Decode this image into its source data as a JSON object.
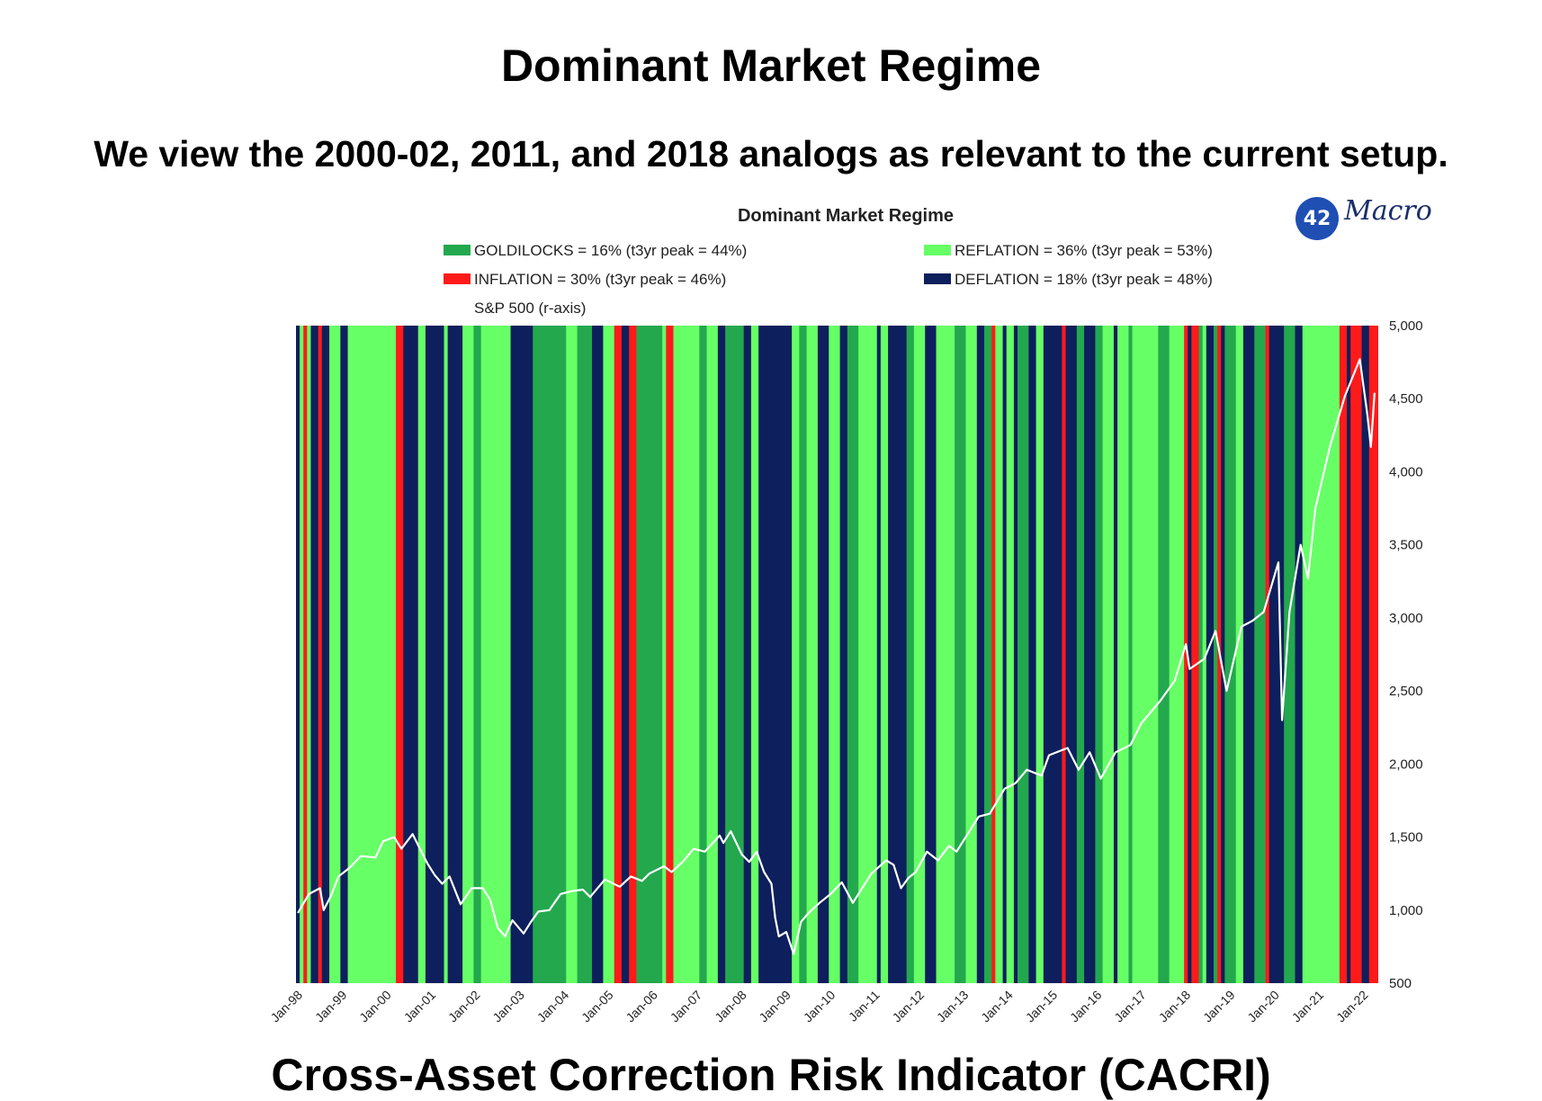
{
  "slide": {
    "title": "Dominant Market Regime",
    "subtitle": "We view the 2000-02, 2011, and 2018 analogs as relevant to the current setup.",
    "footer_partial": "Cross-Asset Correction Risk Indicator (CACRI)"
  },
  "logo": {
    "number": "42",
    "text": "Macro"
  },
  "chart_data": {
    "type": "area",
    "title": "Dominant Market Regime",
    "legend": [
      {
        "label": "GOLDILOCKS = 16% (t3yr peak = 44%)",
        "color": "#23a84e",
        "regime": "G"
      },
      {
        "label": "REFLATION = 36% (t3yr peak = 53%)",
        "color": "#66ff66",
        "regime": "R"
      },
      {
        "label": "INFLATION = 30% (t3yr peak = 46%)",
        "color": "#ff1a1a",
        "regime": "I"
      },
      {
        "label": "DEFLATION = 18% (t3yr peak = 48%)",
        "color": "#0d1f5c",
        "regime": "D"
      }
    ],
    "series_label": "S&P 500 (r-axis)",
    "series_color": "#ffffff",
    "x_range": [
      "1998-01",
      "2022-04"
    ],
    "x_tick_labels": [
      "Jan-98",
      "Jan-99",
      "Jan-00",
      "Jan-01",
      "Jan-02",
      "Jan-03",
      "Jan-04",
      "Jan-05",
      "Jan-06",
      "Jan-07",
      "Jan-08",
      "Jan-09",
      "Jan-10",
      "Jan-11",
      "Jan-12",
      "Jan-13",
      "Jan-14",
      "Jan-15",
      "Jan-16",
      "Jan-17",
      "Jan-18",
      "Jan-19",
      "Jan-20",
      "Jan-21",
      "Jan-22"
    ],
    "y_right_ticks": [
      "5,000",
      "4,500",
      "4,000",
      "3,500",
      "3,000",
      "2,500",
      "2,000",
      "1,500",
      "1,000",
      "500"
    ],
    "ylim": [
      500,
      5000
    ],
    "regimes": [
      [
        "1998-01",
        "D"
      ],
      [
        "1998-02",
        "R"
      ],
      [
        "1998-03",
        "I"
      ],
      [
        "1998-04",
        "R"
      ],
      [
        "1998-05",
        "D"
      ],
      [
        "1998-07",
        "I"
      ],
      [
        "1998-08",
        "D"
      ],
      [
        "1998-10",
        "R"
      ],
      [
        "1999-01",
        "D"
      ],
      [
        "1999-03",
        "R"
      ],
      [
        "2000-04",
        "I"
      ],
      [
        "2000-06",
        "D"
      ],
      [
        "2000-10",
        "R"
      ],
      [
        "2000-12",
        "D"
      ],
      [
        "2001-05",
        "R"
      ],
      [
        "2001-06",
        "D"
      ],
      [
        "2001-10",
        "R"
      ],
      [
        "2002-01",
        "G"
      ],
      [
        "2002-03",
        "R"
      ],
      [
        "2002-11",
        "D"
      ],
      [
        "2003-05",
        "G"
      ],
      [
        "2004-02",
        "R"
      ],
      [
        "2004-05",
        "G"
      ],
      [
        "2004-09",
        "D"
      ],
      [
        "2004-12",
        "R"
      ],
      [
        "2005-03",
        "I"
      ],
      [
        "2005-05",
        "D"
      ],
      [
        "2005-07",
        "I"
      ],
      [
        "2005-09",
        "G"
      ],
      [
        "2006-04",
        "R"
      ],
      [
        "2006-05",
        "I"
      ],
      [
        "2006-07",
        "R"
      ],
      [
        "2007-02",
        "G"
      ],
      [
        "2007-04",
        "R"
      ],
      [
        "2007-07",
        "D"
      ],
      [
        "2007-09",
        "G"
      ],
      [
        "2008-02",
        "D"
      ],
      [
        "2008-04",
        "R"
      ],
      [
        "2008-06",
        "D"
      ],
      [
        "2009-03",
        "R"
      ],
      [
        "2009-05",
        "G"
      ],
      [
        "2009-07",
        "R"
      ],
      [
        "2009-10",
        "D"
      ],
      [
        "2010-01",
        "R"
      ],
      [
        "2010-04",
        "D"
      ],
      [
        "2010-06",
        "G"
      ],
      [
        "2010-09",
        "R"
      ],
      [
        "2011-02",
        "D"
      ],
      [
        "2011-03",
        "R"
      ],
      [
        "2011-05",
        "D"
      ],
      [
        "2011-10",
        "G"
      ],
      [
        "2011-12",
        "R"
      ],
      [
        "2012-03",
        "D"
      ],
      [
        "2012-06",
        "R"
      ],
      [
        "2012-11",
        "G"
      ],
      [
        "2013-02",
        "R"
      ],
      [
        "2013-05",
        "D"
      ],
      [
        "2013-07",
        "G"
      ],
      [
        "2013-09",
        "I"
      ],
      [
        "2013-10",
        "R"
      ],
      [
        "2013-12",
        "D"
      ],
      [
        "2014-01",
        "R"
      ],
      [
        "2014-03",
        "D"
      ],
      [
        "2014-04",
        "G"
      ],
      [
        "2014-07",
        "D"
      ],
      [
        "2014-09",
        "R"
      ],
      [
        "2014-11",
        "D"
      ],
      [
        "2015-04",
        "I"
      ],
      [
        "2015-05",
        "D"
      ],
      [
        "2015-08",
        "G"
      ],
      [
        "2015-10",
        "D"
      ],
      [
        "2016-01",
        "G"
      ],
      [
        "2016-03",
        "R"
      ],
      [
        "2016-06",
        "D"
      ],
      [
        "2016-07",
        "R"
      ],
      [
        "2016-10",
        "G"
      ],
      [
        "2016-11",
        "R"
      ],
      [
        "2017-06",
        "G"
      ],
      [
        "2017-09",
        "R"
      ],
      [
        "2018-01",
        "I"
      ],
      [
        "2018-02",
        "D"
      ],
      [
        "2018-03",
        "I"
      ],
      [
        "2018-05",
        "G"
      ],
      [
        "2018-06",
        "R"
      ],
      [
        "2018-07",
        "D"
      ],
      [
        "2018-09",
        "G"
      ],
      [
        "2018-10",
        "I"
      ],
      [
        "2018-11",
        "D"
      ],
      [
        "2018-12",
        "G"
      ],
      [
        "2019-03",
        "R"
      ],
      [
        "2019-05",
        "D"
      ],
      [
        "2019-08",
        "G"
      ],
      [
        "2019-11",
        "I"
      ],
      [
        "2019-12",
        "D"
      ],
      [
        "2020-04",
        "G"
      ],
      [
        "2020-07",
        "D"
      ],
      [
        "2020-09",
        "R"
      ],
      [
        "2021-07",
        "I"
      ],
      [
        "2021-09",
        "D"
      ],
      [
        "2021-10",
        "I"
      ],
      [
        "2022-01",
        "D"
      ],
      [
        "2022-03",
        "I"
      ]
    ],
    "sp500_monthly": [
      [
        "1998-01",
        980
      ],
      [
        "1998-04",
        1110
      ],
      [
        "1998-07",
        1150
      ],
      [
        "1998-08",
        1000
      ],
      [
        "1998-10",
        1100
      ],
      [
        "1998-12",
        1230
      ],
      [
        "1999-03",
        1290
      ],
      [
        "1999-06",
        1370
      ],
      [
        "1999-10",
        1360
      ],
      [
        "1999-12",
        1470
      ],
      [
        "2000-03",
        1500
      ],
      [
        "2000-05",
        1420
      ],
      [
        "2000-08",
        1520
      ],
      [
        "2000-10",
        1420
      ],
      [
        "2000-12",
        1320
      ],
      [
        "2001-02",
        1240
      ],
      [
        "2001-04",
        1180
      ],
      [
        "2001-06",
        1230
      ],
      [
        "2001-09",
        1040
      ],
      [
        "2001-12",
        1150
      ],
      [
        "2002-03",
        1150
      ],
      [
        "2002-05",
        1070
      ],
      [
        "2002-07",
        880
      ],
      [
        "2002-09",
        820
      ],
      [
        "2002-11",
        930
      ],
      [
        "2003-02",
        840
      ],
      [
        "2003-04",
        920
      ],
      [
        "2003-06",
        990
      ],
      [
        "2003-09",
        1000
      ],
      [
        "2003-12",
        1110
      ],
      [
        "2004-03",
        1130
      ],
      [
        "2004-06",
        1140
      ],
      [
        "2004-08",
        1090
      ],
      [
        "2004-12",
        1210
      ],
      [
        "2005-04",
        1160
      ],
      [
        "2005-07",
        1230
      ],
      [
        "2005-10",
        1200
      ],
      [
        "2005-12",
        1250
      ],
      [
        "2006-04",
        1300
      ],
      [
        "2006-06",
        1260
      ],
      [
        "2006-09",
        1330
      ],
      [
        "2006-12",
        1420
      ],
      [
        "2007-03",
        1400
      ],
      [
        "2007-07",
        1510
      ],
      [
        "2007-08",
        1460
      ],
      [
        "2007-10",
        1540
      ],
      [
        "2008-01",
        1380
      ],
      [
        "2008-03",
        1330
      ],
      [
        "2008-05",
        1400
      ],
      [
        "2008-07",
        1260
      ],
      [
        "2008-09",
        1180
      ],
      [
        "2008-10",
        950
      ],
      [
        "2008-11",
        820
      ],
      [
        "2009-01",
        850
      ],
      [
        "2009-03",
        700
      ],
      [
        "2009-05",
        920
      ],
      [
        "2009-07",
        980
      ],
      [
        "2009-10",
        1050
      ],
      [
        "2010-01",
        1110
      ],
      [
        "2010-04",
        1190
      ],
      [
        "2010-07",
        1050
      ],
      [
        "2010-09",
        1130
      ],
      [
        "2010-12",
        1250
      ],
      [
        "2011-04",
        1340
      ],
      [
        "2011-06",
        1310
      ],
      [
        "2011-08",
        1150
      ],
      [
        "2011-10",
        1220
      ],
      [
        "2011-12",
        1260
      ],
      [
        "2012-03",
        1400
      ],
      [
        "2012-06",
        1340
      ],
      [
        "2012-09",
        1440
      ],
      [
        "2012-11",
        1400
      ],
      [
        "2013-01",
        1480
      ],
      [
        "2013-05",
        1640
      ],
      [
        "2013-08",
        1660
      ],
      [
        "2013-12",
        1830
      ],
      [
        "2014-03",
        1870
      ],
      [
        "2014-06",
        1960
      ],
      [
        "2014-10",
        1920
      ],
      [
        "2014-12",
        2060
      ],
      [
        "2015-05",
        2110
      ],
      [
        "2015-08",
        1960
      ],
      [
        "2015-11",
        2080
      ],
      [
        "2016-02",
        1900
      ],
      [
        "2016-06",
        2080
      ],
      [
        "2016-10",
        2130
      ],
      [
        "2017-01",
        2280
      ],
      [
        "2017-06",
        2430
      ],
      [
        "2017-10",
        2570
      ],
      [
        "2018-01",
        2820
      ],
      [
        "2018-02",
        2650
      ],
      [
        "2018-06",
        2720
      ],
      [
        "2018-09",
        2910
      ],
      [
        "2018-12",
        2500
      ],
      [
        "2019-04",
        2940
      ],
      [
        "2019-07",
        2980
      ],
      [
        "2019-10",
        3040
      ],
      [
        "2020-02",
        3380
      ],
      [
        "2020-03",
        2300
      ],
      [
        "2020-05",
        3040
      ],
      [
        "2020-08",
        3500
      ],
      [
        "2020-10",
        3270
      ],
      [
        "2020-12",
        3750
      ],
      [
        "2021-04",
        4180
      ],
      [
        "2021-08",
        4520
      ],
      [
        "2021-12",
        4770
      ],
      [
        "2022-02",
        4400
      ],
      [
        "2022-03",
        4170
      ],
      [
        "2022-04",
        4540
      ]
    ]
  }
}
